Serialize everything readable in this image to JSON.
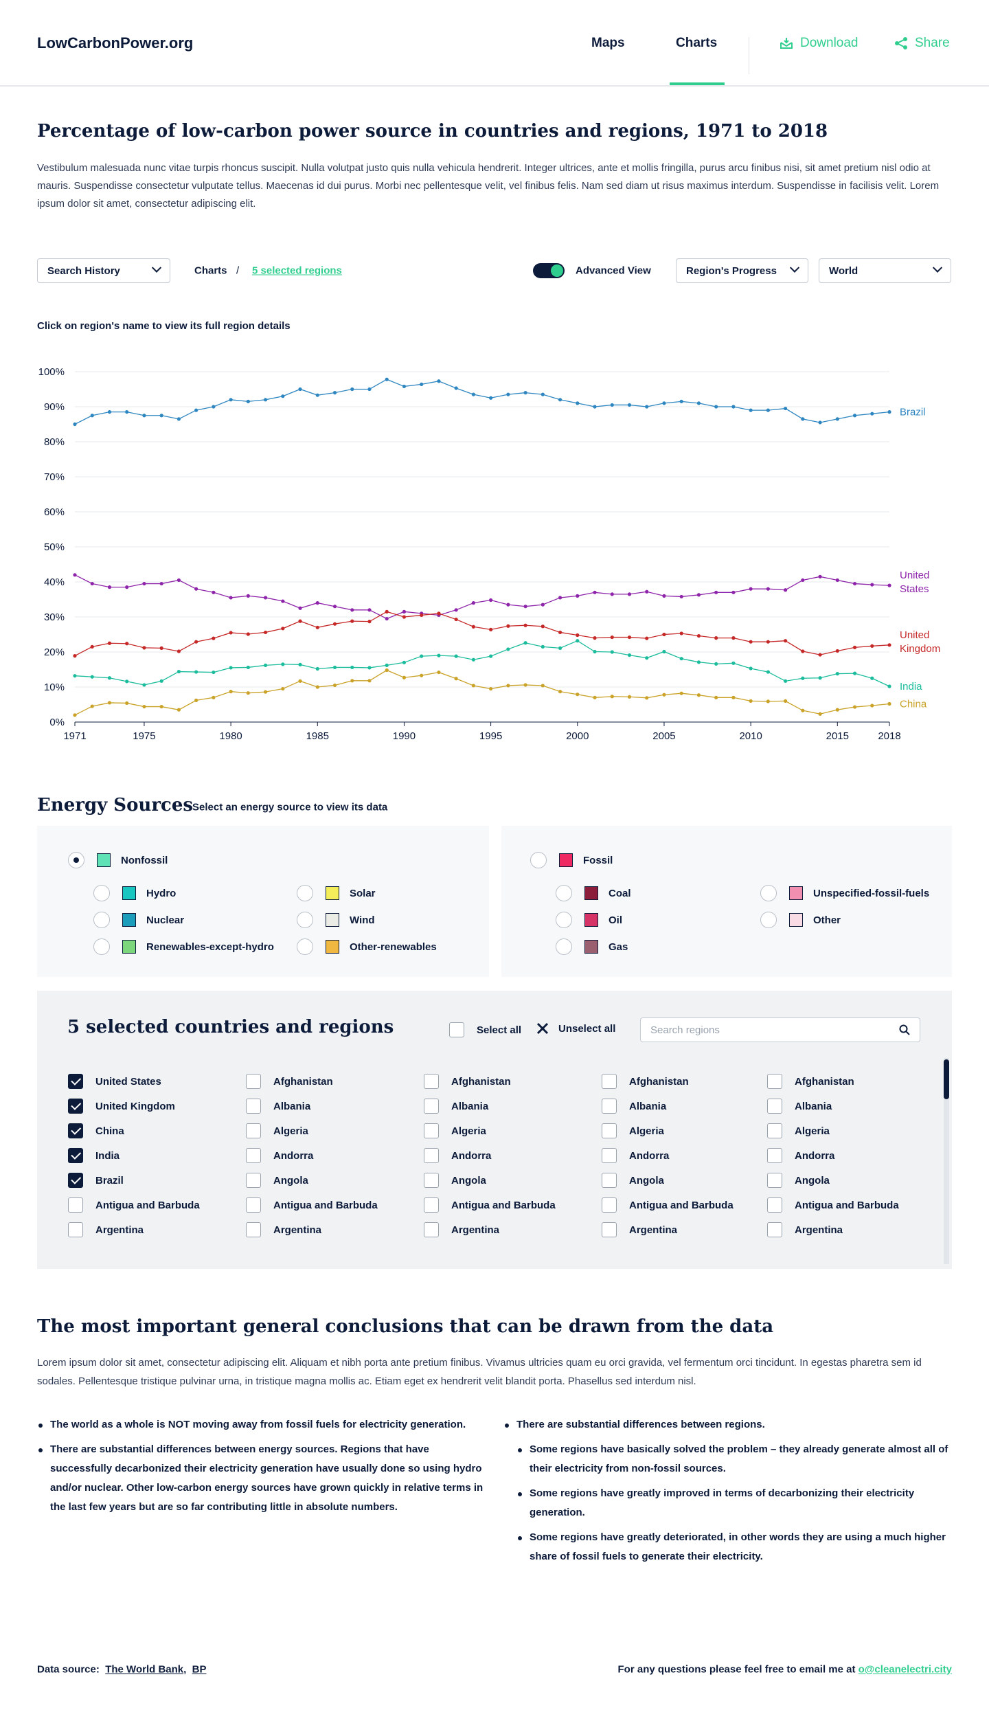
{
  "header": {
    "logo": "LowCarbonPower.org",
    "nav": [
      "Maps",
      "Charts"
    ],
    "download": "Download",
    "share": "Share",
    "colors": {
      "accent": "#2fce8e",
      "text": "#0d1b3a"
    }
  },
  "page": {
    "title": "Percentage of low-carbon power source in countries and regions, 1971 to 2018",
    "description": "Vestibulum malesuada nunc vitae turpis rhoncus suscipit. Nulla volutpat justo quis nulla vehicula hendrerit. Integer ultrices, ante et mollis fringilla, purus arcu finibus nisi, sit amet pretium nisl odio at mauris. Suspendisse consectetur vulputate tellus. Maecenas id dui purus. Morbi nec pellentesque velit, vel finibus felis. Nam sed diam ut risus maximus interdum. Suspendisse in facilisis velit. Lorem ipsum dolor sit amet, consectetur adipiscing elit."
  },
  "toolbar": {
    "search_history": "Search History",
    "crumb_root": "Charts",
    "crumb_sep": "/",
    "crumb_current": "5 selected regions",
    "advanced_view": "Advanced View",
    "progress_select": "Region's Progress",
    "world_select": "World"
  },
  "chart_hint": "Click on region's name to view its full region details",
  "chart_data": {
    "type": "line",
    "title": "",
    "xlabel": "",
    "ylabel": "",
    "ylim": [
      0,
      100
    ],
    "xlim": [
      1971,
      2018
    ],
    "yticks": [
      "0%",
      "10%",
      "20%",
      "30%",
      "40%",
      "50%",
      "60%",
      "70%",
      "80%",
      "90%",
      "100%"
    ],
    "xticks": [
      1971,
      1975,
      1980,
      1985,
      1990,
      1995,
      2000,
      2005,
      2010,
      2015,
      2018
    ],
    "series": [
      {
        "name": "Brazil",
        "label_lines": [
          "Brazil"
        ],
        "color": "#2e86c1",
        "start": 1971,
        "values": [
          85,
          87.5,
          88.5,
          88.5,
          87.5,
          87.5,
          86.5,
          89,
          90,
          92,
          91.5,
          92,
          93,
          95,
          93.3,
          94,
          95,
          95,
          97.8,
          95.8,
          96.4,
          97.3,
          95.3,
          93.5,
          92.5,
          93.5,
          94,
          93.5,
          92,
          91,
          90,
          90.5,
          90.5,
          90,
          91,
          91.5,
          91,
          90,
          90,
          89,
          89,
          89.5,
          86.5,
          85.5,
          86.5,
          87.5,
          88,
          88.5
        ]
      },
      {
        "name": "United States",
        "label_lines": [
          "United",
          "States"
        ],
        "color": "#8e24aa",
        "start": 1971,
        "values": [
          42,
          39.5,
          38.5,
          38.5,
          39.5,
          39.5,
          40.5,
          38,
          37,
          35.5,
          36,
          35.5,
          34.5,
          32.5,
          34,
          33,
          32,
          32,
          29.5,
          31.5,
          31,
          30.5,
          32,
          34,
          34.8,
          33.5,
          33,
          33.5,
          35.5,
          36,
          37,
          36.5,
          36.5,
          37.2,
          36,
          35.8,
          36.3,
          37,
          37,
          38,
          38,
          37.7,
          40.5,
          41.5,
          40.5,
          39.5,
          39.2,
          39
        ]
      },
      {
        "name": "United Kingdom",
        "label_lines": [
          "United",
          "Kingdom"
        ],
        "color": "#c62828",
        "start": 1971,
        "values": [
          18.9,
          21.5,
          22.5,
          22.4,
          21.2,
          21.1,
          20.2,
          22.9,
          23.9,
          25.5,
          25.1,
          25.6,
          26.7,
          28.8,
          27,
          28,
          28.8,
          28.7,
          31.5,
          30,
          30.5,
          31,
          29.3,
          27.2,
          26.4,
          27.4,
          27.6,
          27.3,
          25.6,
          24.8,
          24,
          24.2,
          24.2,
          23.9,
          25,
          25.3,
          24.6,
          24,
          24,
          22.9,
          22.9,
          23.2,
          20.2,
          19.2,
          20.3,
          21.3,
          21.7,
          22
        ]
      },
      {
        "name": "India",
        "label_lines": [
          "India"
        ],
        "color": "#1abc9c",
        "start": 1971,
        "values": [
          13.2,
          12.9,
          12.6,
          11.6,
          10.6,
          11.7,
          14.4,
          14.3,
          14.2,
          15.5,
          15.6,
          16.2,
          16.5,
          16.4,
          15.2,
          15.6,
          15.6,
          15.5,
          16.2,
          17,
          18.8,
          19,
          18.8,
          17.8,
          18.8,
          20.8,
          22.6,
          21.5,
          21.1,
          23.2,
          20.1,
          20,
          19.1,
          18.3,
          20.1,
          18.1,
          17.1,
          16.6,
          16.8,
          15.3,
          14.3,
          11.7,
          12.5,
          12.6,
          13.8,
          13.9,
          12.5,
          10.2
        ]
      },
      {
        "name": "China",
        "label_lines": [
          "China"
        ],
        "color": "#c9a227",
        "start": 1971,
        "values": [
          2,
          4.5,
          5.5,
          5.4,
          4.4,
          4.4,
          3.5,
          6.2,
          7,
          8.7,
          8.3,
          8.6,
          9.5,
          11.7,
          10,
          10.5,
          11.8,
          11.8,
          14.8,
          12.7,
          13.3,
          14.2,
          12.4,
          10.4,
          9.5,
          10.4,
          10.6,
          10.4,
          8.7,
          7.9,
          7,
          7.3,
          7.2,
          6.9,
          7.8,
          8.2,
          7.7,
          7,
          7,
          6,
          5.9,
          6,
          3.3,
          2.3,
          3.5,
          4.3,
          4.7,
          5.2
        ]
      }
    ]
  },
  "energy": {
    "title": "Energy Sources",
    "subtitle": "Select an energy source to view its data",
    "nonfossil": {
      "label": "Nonfossil",
      "color": "#5fe2b6"
    },
    "nonfossil_items": [
      {
        "label": "Hydro",
        "color": "#19c7c0"
      },
      {
        "label": "Solar",
        "color": "#f3ee5a"
      },
      {
        "label": "Nuclear",
        "color": "#1d9dbc"
      },
      {
        "label": "Wind",
        "color": "#ecece6"
      },
      {
        "label": "Renewables-except-hydro",
        "color": "#7cd67b"
      },
      {
        "label": "Other-renewables",
        "color": "#f0b840"
      }
    ],
    "fossil": {
      "label": "Fossil",
      "color": "#ef2a62"
    },
    "fossil_items": [
      {
        "label": "Coal",
        "color": "#8c1d3b"
      },
      {
        "label": "Unspecified-fossil-fuels",
        "color": "#f08fb0"
      },
      {
        "label": "Oil",
        "color": "#d63467"
      },
      {
        "label": "Other",
        "color": "#f9dbe6"
      },
      {
        "label": "Gas",
        "color": "#9a6070"
      }
    ]
  },
  "regions": {
    "title": "5 selected countries and regions",
    "select_all": "Select all",
    "unselect_all": "Unselect all",
    "search_placeholder": "Search regions",
    "columns": [
      [
        {
          "name": "United States",
          "checked": true
        },
        {
          "name": "United Kingdom",
          "checked": true
        },
        {
          "name": "China",
          "checked": true
        },
        {
          "name": "India",
          "checked": true
        },
        {
          "name": "Brazil",
          "checked": true
        },
        {
          "name": "Antigua and Barbuda",
          "checked": false
        },
        {
          "name": "Argentina",
          "checked": false
        }
      ],
      [
        {
          "name": "Afghanistan",
          "checked": false
        },
        {
          "name": "Albania",
          "checked": false
        },
        {
          "name": "Algeria",
          "checked": false
        },
        {
          "name": "Andorra",
          "checked": false
        },
        {
          "name": "Angola",
          "checked": false
        },
        {
          "name": "Antigua and Barbuda",
          "checked": false
        },
        {
          "name": "Argentina",
          "checked": false
        }
      ],
      [
        {
          "name": "Afghanistan",
          "checked": false
        },
        {
          "name": "Albania",
          "checked": false
        },
        {
          "name": "Algeria",
          "checked": false
        },
        {
          "name": "Andorra",
          "checked": false
        },
        {
          "name": "Angola",
          "checked": false
        },
        {
          "name": "Antigua and Barbuda",
          "checked": false
        },
        {
          "name": "Argentina",
          "checked": false
        }
      ],
      [
        {
          "name": "Afghanistan",
          "checked": false
        },
        {
          "name": "Albania",
          "checked": false
        },
        {
          "name": "Algeria",
          "checked": false
        },
        {
          "name": "Andorra",
          "checked": false
        },
        {
          "name": "Angola",
          "checked": false
        },
        {
          "name": "Antigua and Barbuda",
          "checked": false
        },
        {
          "name": "Argentina",
          "checked": false
        }
      ],
      [
        {
          "name": "Afghanistan",
          "checked": false
        },
        {
          "name": "Albania",
          "checked": false
        },
        {
          "name": "Algeria",
          "checked": false
        },
        {
          "name": "Andorra",
          "checked": false
        },
        {
          "name": "Angola",
          "checked": false
        },
        {
          "name": "Antigua and Barbuda",
          "checked": false
        },
        {
          "name": "Argentina",
          "checked": false
        }
      ]
    ]
  },
  "conclusions": {
    "title": "The most important general conclusions that can be drawn from the data",
    "intro": "Lorem ipsum dolor sit amet, consectetur adipiscing elit. Aliquam et nibh porta ante pretium finibus. Vivamus ultricies quam eu orci gravida, vel fermentum orci tincidunt. In egestas pharetra sem id sodales. Pellentesque tristique pulvinar urna, in tristique magna mollis ac. Etiam eget ex hendrerit velit blandit porta. Phasellus sed interdum nisl.",
    "left": [
      {
        "before": "The world as a whole is ",
        "strong": "NOT",
        "after": " moving away from fossil fuels for electricity generation."
      },
      {
        "before": "There are substantial differences between energy sources. Regions that have successfully decarbonized their electricity generation have usually done so using hydro and/or nuclear. Other low-carbon energy sources have grown quickly in relative terms in the last few years but are so far contributing little in absolute numbers.",
        "strong": "",
        "after": ""
      }
    ],
    "right_main": "There are substantial differences between regions.",
    "right_sub": [
      "Some regions have basically solved the problem – they already generate almost all of their electricity from non-fossil sources.",
      "Some regions have greatly improved in terms of decarbonizing their electricity generation.",
      "Some regions have greatly deteriorated, in other words they are using a much higher share of fossil fuels to generate their electricity."
    ]
  },
  "footer": {
    "data_source_label": "Data source:",
    "sources": [
      "The World Bank",
      "BP"
    ],
    "sep": ",",
    "contact": "For any questions please feel free to email me at ",
    "email": "o@cleanelectri.city"
  }
}
